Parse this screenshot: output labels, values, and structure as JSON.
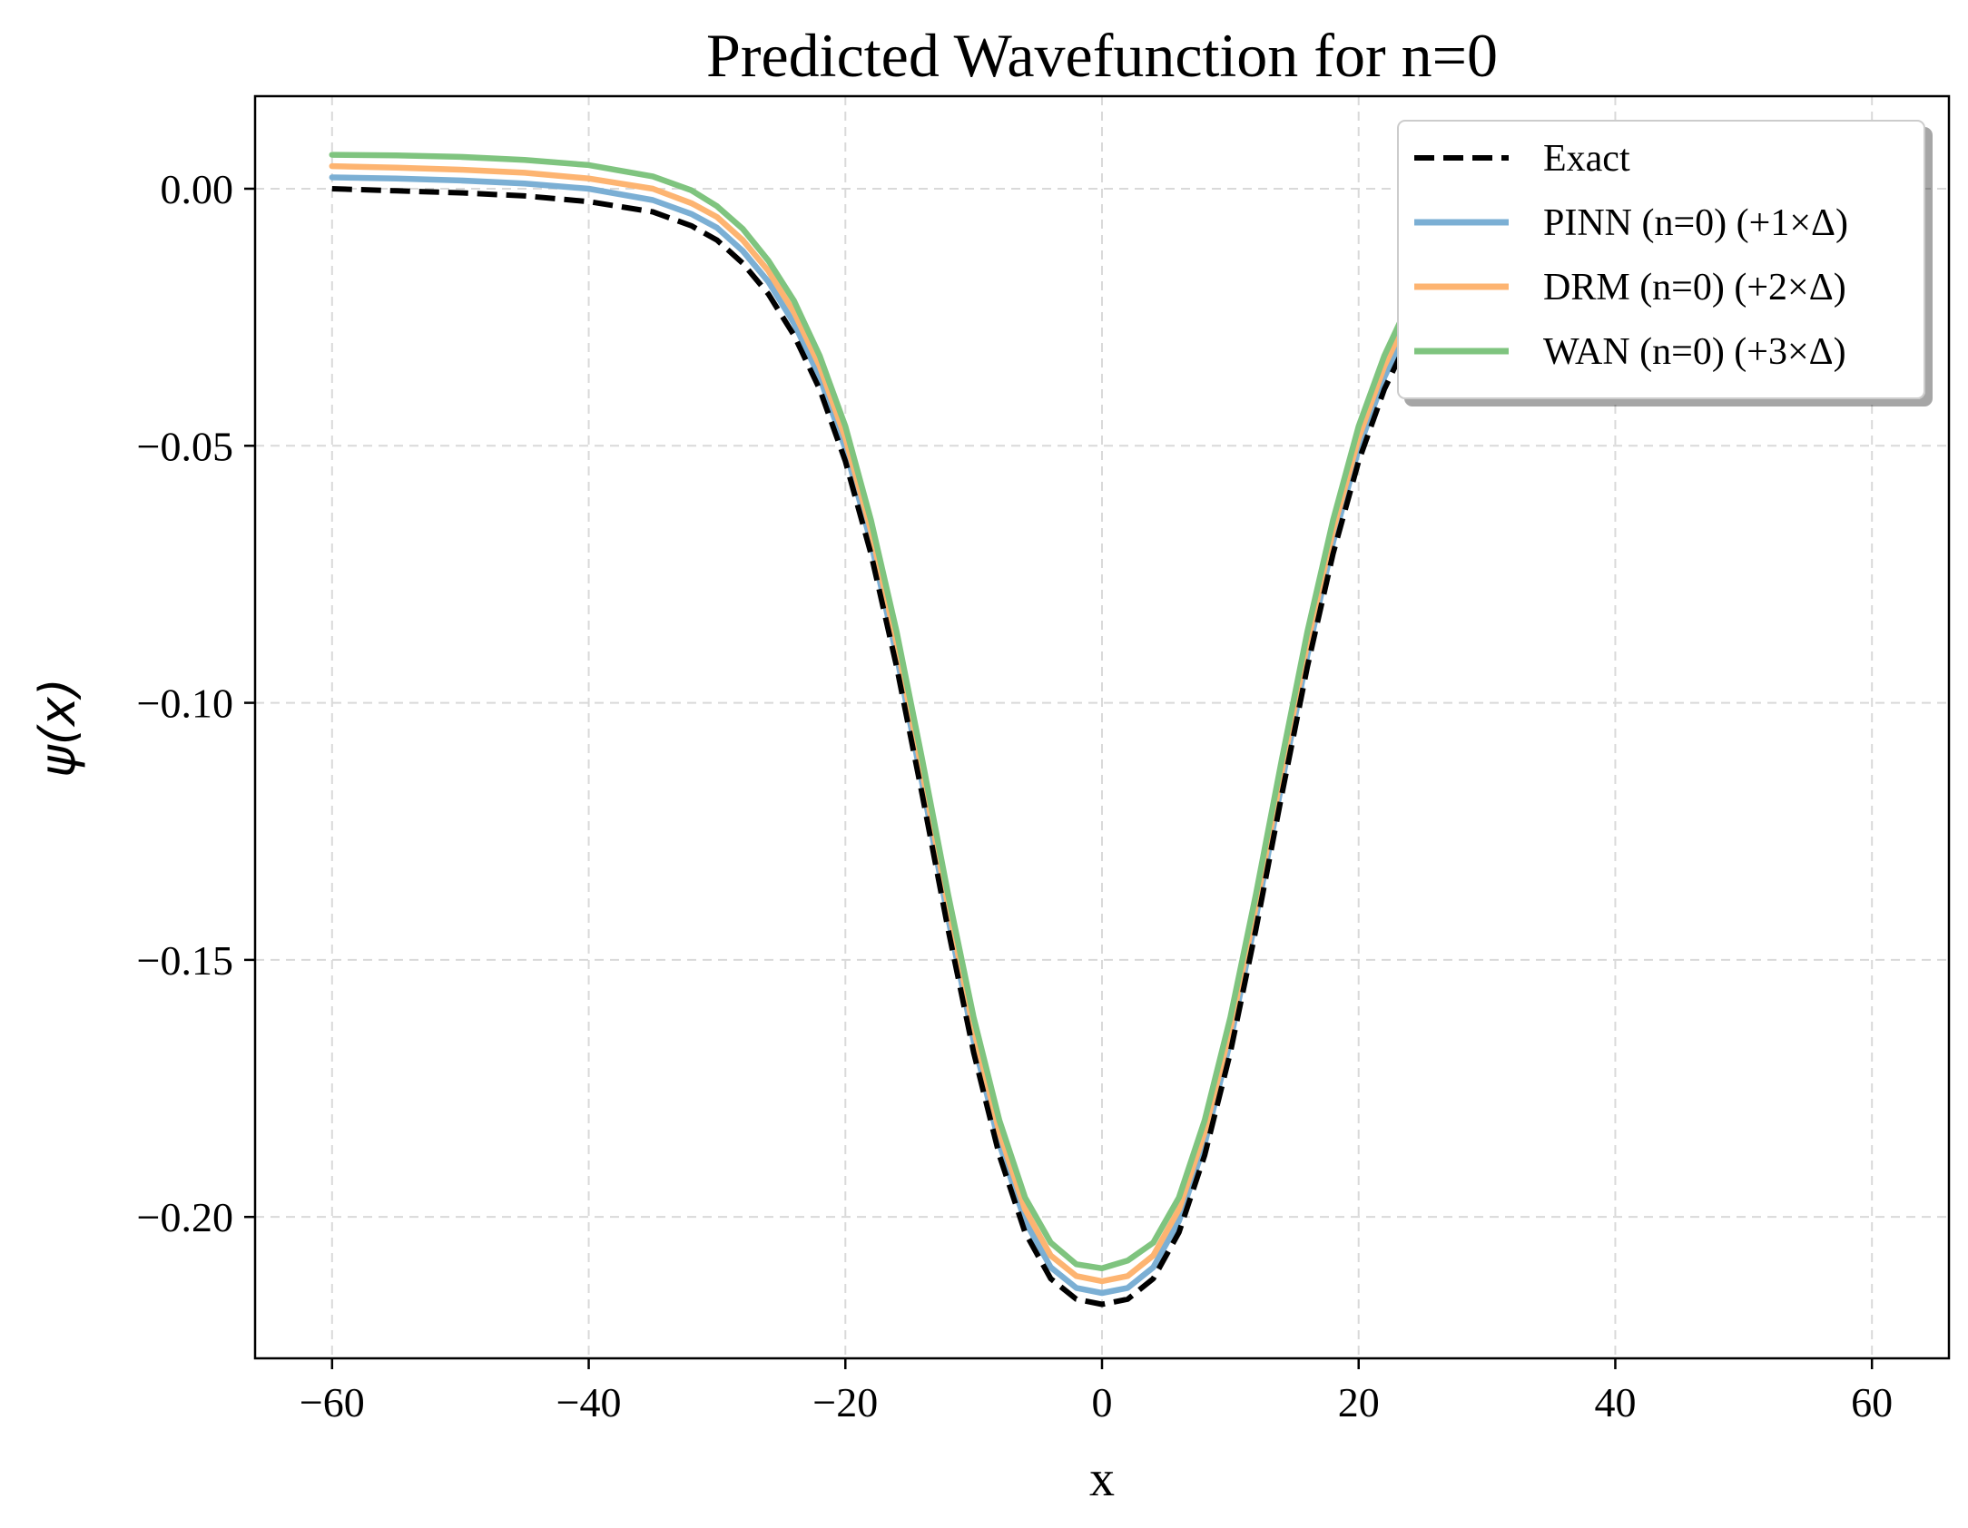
{
  "chart_data": {
    "type": "line",
    "title": "Predicted Wavefunction for n=0",
    "xlabel": "x",
    "ylabel": "ψ(x)",
    "xlim": [
      -66,
      66
    ],
    "ylim": [
      -0.2275,
      0.018
    ],
    "xticks": [
      -60,
      -40,
      -20,
      0,
      20,
      40,
      60
    ],
    "xtick_labels": [
      "−60",
      "−40",
      "−20",
      "0",
      "20",
      "40",
      "60"
    ],
    "yticks": [
      0.0,
      -0.05,
      -0.1,
      -0.15,
      -0.2
    ],
    "ytick_labels": [
      "0.00",
      "−0.05",
      "−0.10",
      "−0.15",
      "−0.20"
    ],
    "grid": true,
    "legend_position": "top-right",
    "series": [
      {
        "name": "Exact",
        "color": "#000000",
        "style": "dashed",
        "offset": 0.0,
        "x": [
          -60,
          -55,
          -50,
          -45,
          -40,
          -35,
          -32,
          -30,
          -28,
          -26,
          -24,
          -22,
          -20,
          -18,
          -16,
          -14,
          -12,
          -10,
          -8,
          -6,
          -4,
          -2,
          0,
          2,
          4,
          6,
          8,
          10,
          12,
          14,
          16,
          18,
          20,
          22,
          24,
          26,
          28,
          30
        ],
        "values": [
          0.0,
          -0.0004,
          -0.0008,
          -0.0014,
          -0.0025,
          -0.0045,
          -0.0072,
          -0.01,
          -0.0145,
          -0.0205,
          -0.0285,
          -0.039,
          -0.053,
          -0.071,
          -0.093,
          -0.118,
          -0.144,
          -0.168,
          -0.188,
          -0.203,
          -0.212,
          -0.216,
          -0.217,
          -0.216,
          -0.212,
          -0.203,
          -0.188,
          -0.168,
          -0.144,
          -0.118,
          -0.093,
          -0.071,
          -0.053,
          -0.039,
          -0.0285,
          -0.0205,
          -0.0145,
          -0.01
        ]
      },
      {
        "name": "PINN (n=0) (+1×Δ)",
        "color": "#7bafd4",
        "style": "solid",
        "offset": 0.0022,
        "x": [
          -60,
          -55,
          -50,
          -45,
          -40,
          -35,
          -32,
          -30,
          -28,
          -26,
          -24,
          -22,
          -20,
          -18,
          -16,
          -14,
          -12,
          -10,
          -8,
          -6,
          -4,
          -2,
          0,
          2,
          4,
          6,
          8,
          10,
          12,
          14,
          16,
          18,
          20,
          22,
          24,
          26,
          28,
          30
        ],
        "values": [
          0.0022,
          0.002,
          0.0016,
          0.001,
          0.0,
          -0.0022,
          -0.0049,
          -0.0076,
          -0.0121,
          -0.0181,
          -0.0262,
          -0.0367,
          -0.0506,
          -0.0688,
          -0.0908,
          -0.1158,
          -0.1418,
          -0.1658,
          -0.1858,
          -0.2008,
          -0.2098,
          -0.2138,
          -0.2148,
          -0.2138,
          -0.2098,
          -0.2008,
          -0.1858,
          -0.1658,
          -0.1418,
          -0.1158,
          -0.0908,
          -0.0688,
          -0.0506,
          -0.0367,
          -0.0262,
          -0.0181,
          -0.0121,
          -0.0076
        ]
      },
      {
        "name": "DRM (n=0) (+2×Δ)",
        "color": "#fdb471",
        "style": "solid",
        "offset": 0.0044,
        "x": [
          -60,
          -55,
          -50,
          -45,
          -40,
          -35,
          -32,
          -30,
          -28,
          -26,
          -24,
          -22,
          -20,
          -18,
          -16,
          -14,
          -12,
          -10,
          -8,
          -6,
          -4,
          -2,
          0,
          2,
          4,
          6,
          8,
          10,
          12,
          14,
          16,
          18,
          20,
          22,
          24,
          26,
          28,
          30
        ],
        "values": [
          0.0044,
          0.0041,
          0.0037,
          0.0031,
          0.002,
          0.0,
          -0.0028,
          -0.0055,
          -0.01,
          -0.016,
          -0.024,
          -0.0345,
          -0.0485,
          -0.0665,
          -0.0885,
          -0.1135,
          -0.1395,
          -0.1635,
          -0.1835,
          -0.1985,
          -0.2075,
          -0.2115,
          -0.2125,
          -0.2115,
          -0.2075,
          -0.1985,
          -0.1835,
          -0.1635,
          -0.1395,
          -0.1135,
          -0.0885,
          -0.0665,
          -0.0485,
          -0.0345,
          -0.024,
          -0.016,
          -0.01,
          -0.0055
        ]
      },
      {
        "name": "WAN (n=0) (+3×Δ)",
        "color": "#7fc47f",
        "style": "solid",
        "offset": 0.0066,
        "x": [
          -60,
          -55,
          -50,
          -45,
          -40,
          -35,
          -32,
          -30,
          -28,
          -26,
          -24,
          -22,
          -20,
          -18,
          -16,
          -14,
          -12,
          -10,
          -8,
          -6,
          -4,
          -2,
          0,
          2,
          4,
          6,
          8,
          10,
          12,
          14,
          16,
          18,
          20,
          22,
          24,
          26,
          28,
          30
        ],
        "values": [
          0.0066,
          0.0065,
          0.0062,
          0.0056,
          0.0046,
          0.0024,
          -0.0003,
          -0.0034,
          -0.0078,
          -0.014,
          -0.0218,
          -0.0325,
          -0.0462,
          -0.0645,
          -0.0862,
          -0.1112,
          -0.1372,
          -0.1612,
          -0.1812,
          -0.1962,
          -0.205,
          -0.2092,
          -0.21,
          -0.2085,
          -0.205,
          -0.1962,
          -0.1812,
          -0.1612,
          -0.1372,
          -0.1112,
          -0.0862,
          -0.0645,
          -0.0462,
          -0.0325,
          -0.0218,
          -0.014,
          -0.0078,
          -0.0034
        ]
      }
    ]
  }
}
